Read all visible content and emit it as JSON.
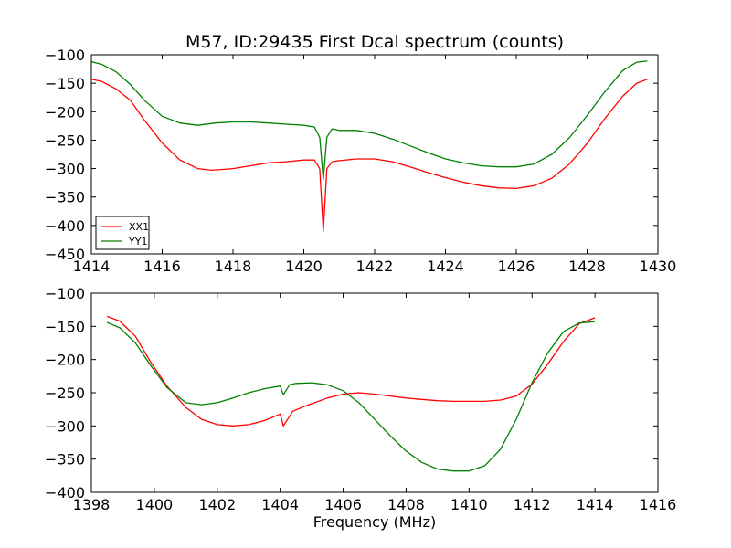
{
  "title": "M57, ID:29435 First Dcal spectrum (counts)",
  "xlabel": "Frequency (MHz)",
  "colors": {
    "XX1": "#ff0000",
    "YY1": "#008000"
  },
  "legend": {
    "placement": "lower-left",
    "entries": [
      "XX1",
      "YY1"
    ]
  },
  "chart_data": [
    {
      "type": "line",
      "xlim": [
        1414,
        1430
      ],
      "ylim": [
        -450,
        -100
      ],
      "xticks": [
        "1414",
        "1416",
        "1418",
        "1420",
        "1422",
        "1424",
        "1426",
        "1428",
        "1430"
      ],
      "yticks": [
        "-100",
        "-150",
        "-200",
        "-250",
        "-300",
        "-350",
        "-400",
        "-450"
      ],
      "series": [
        {
          "name": "XX1",
          "x": [
            1414.0,
            1414.3,
            1414.7,
            1415.1,
            1415.5,
            1416.0,
            1416.5,
            1417.0,
            1417.4,
            1418.0,
            1418.5,
            1419.0,
            1419.5,
            1420.0,
            1420.3,
            1420.45,
            1420.55,
            1420.65,
            1420.8,
            1421.0,
            1421.5,
            1422.0,
            1422.5,
            1423.0,
            1423.5,
            1424.0,
            1424.5,
            1425.0,
            1425.5,
            1426.0,
            1426.5,
            1427.0,
            1427.5,
            1428.0,
            1428.5,
            1429.0,
            1429.4,
            1429.7
          ],
          "values": [
            -143,
            -147,
            -160,
            -180,
            -215,
            -255,
            -285,
            -300,
            -303,
            -300,
            -295,
            -290,
            -288,
            -285,
            -285,
            -300,
            -410,
            -300,
            -288,
            -286,
            -283,
            -283,
            -288,
            -297,
            -307,
            -316,
            -324,
            -330,
            -334,
            -335,
            -330,
            -317,
            -292,
            -256,
            -212,
            -173,
            -150,
            -143
          ]
        },
        {
          "name": "YY1",
          "x": [
            1414.0,
            1414.3,
            1414.7,
            1415.1,
            1415.5,
            1416.0,
            1416.5,
            1417.0,
            1417.5,
            1418.0,
            1418.5,
            1419.0,
            1419.5,
            1420.0,
            1420.3,
            1420.45,
            1420.55,
            1420.65,
            1420.8,
            1421.0,
            1421.5,
            1422.0,
            1422.5,
            1423.0,
            1423.5,
            1424.0,
            1424.5,
            1425.0,
            1425.5,
            1426.0,
            1426.5,
            1427.0,
            1427.5,
            1428.0,
            1428.5,
            1429.0,
            1429.4,
            1429.7
          ],
          "values": [
            -112,
            -117,
            -130,
            -152,
            -180,
            -208,
            -220,
            -224,
            -220,
            -218,
            -218,
            -220,
            -222,
            -224,
            -227,
            -245,
            -320,
            -245,
            -230,
            -233,
            -233,
            -238,
            -248,
            -260,
            -272,
            -283,
            -290,
            -295,
            -297,
            -297,
            -292,
            -275,
            -246,
            -207,
            -165,
            -128,
            -113,
            -111
          ]
        }
      ]
    },
    {
      "type": "line",
      "xlim": [
        1398,
        1416
      ],
      "ylim": [
        -400,
        -100
      ],
      "xticks": [
        "1398",
        "1400",
        "1402",
        "1404",
        "1406",
        "1408",
        "1410",
        "1412",
        "1414",
        "1416"
      ],
      "yticks": [
        "-100",
        "-150",
        "-200",
        "-250",
        "-300",
        "-350",
        "-400"
      ],
      "series": [
        {
          "name": "XX1",
          "x": [
            1398.5,
            1398.9,
            1399.4,
            1399.9,
            1400.4,
            1401.0,
            1401.5,
            1402.0,
            1402.5,
            1403.0,
            1403.5,
            1404.0,
            1404.1,
            1404.4,
            1404.8,
            1405.5,
            1406.0,
            1406.5,
            1407.0,
            1407.5,
            1408.0,
            1408.5,
            1409.0,
            1409.5,
            1410.0,
            1410.5,
            1411.0,
            1411.5,
            1412.0,
            1412.5,
            1413.0,
            1413.5,
            1414.0
          ],
          "values": [
            -135,
            -142,
            -165,
            -205,
            -240,
            -272,
            -290,
            -298,
            -300,
            -298,
            -292,
            -282,
            -300,
            -278,
            -270,
            -258,
            -252,
            -250,
            -252,
            -255,
            -258,
            -260,
            -262,
            -263,
            -263,
            -263,
            -261,
            -255,
            -237,
            -207,
            -173,
            -146,
            -137
          ]
        },
        {
          "name": "YY1",
          "x": [
            1398.5,
            1398.9,
            1399.4,
            1399.9,
            1400.4,
            1401.0,
            1401.5,
            1402.0,
            1402.5,
            1403.0,
            1403.5,
            1404.0,
            1404.1,
            1404.3,
            1404.5,
            1405.0,
            1405.5,
            1406.0,
            1406.5,
            1407.0,
            1407.5,
            1408.0,
            1408.5,
            1409.0,
            1409.5,
            1410.0,
            1410.5,
            1411.0,
            1411.5,
            1412.0,
            1412.5,
            1413.0,
            1413.5,
            1414.0
          ],
          "values": [
            -144,
            -152,
            -175,
            -210,
            -242,
            -265,
            -268,
            -265,
            -258,
            -250,
            -244,
            -240,
            -253,
            -238,
            -236,
            -235,
            -238,
            -247,
            -265,
            -290,
            -315,
            -338,
            -355,
            -365,
            -368,
            -368,
            -360,
            -335,
            -290,
            -235,
            -190,
            -158,
            -145,
            -143
          ]
        }
      ]
    }
  ]
}
